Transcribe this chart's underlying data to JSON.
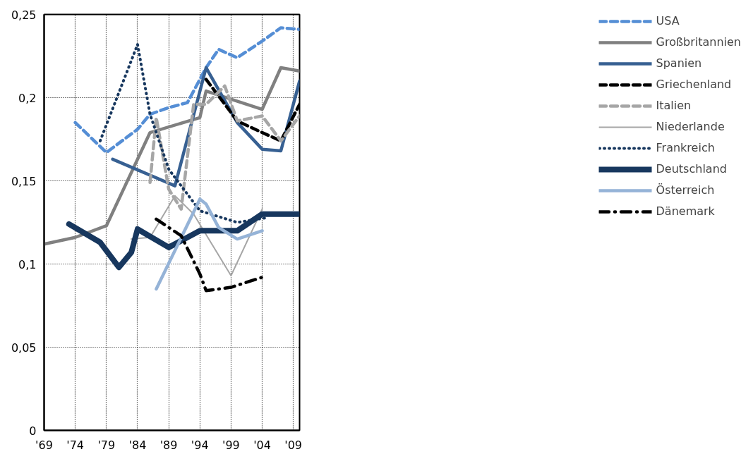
{
  "chart_data": {
    "type": "line",
    "xlim": [
      1969,
      2010
    ],
    "xticks": [
      {
        "value": 1969,
        "label": "'69"
      },
      {
        "value": 1974,
        "label": "'74"
      },
      {
        "value": 1979,
        "label": "'79"
      },
      {
        "value": 1984,
        "label": "'84"
      },
      {
        "value": 1989,
        "label": "'89"
      },
      {
        "value": 1994,
        "label": "'94"
      },
      {
        "value": 1999,
        "label": "'99"
      },
      {
        "value": 2004,
        "label": "'04"
      },
      {
        "value": 2009,
        "label": "'09"
      }
    ],
    "ylim": [
      0,
      0.25
    ],
    "yticks": [
      {
        "value": 0,
        "label": "0"
      },
      {
        "value": 0.05,
        "label": "0,05"
      },
      {
        "value": 0.1,
        "label": "0,1"
      },
      {
        "value": 0.15,
        "label": "0,15"
      },
      {
        "value": 0.2,
        "label": "0,2"
      },
      {
        "value": 0.25,
        "label": "0,25"
      }
    ],
    "grid": true,
    "legend": "right",
    "marker": "none",
    "series": [
      {
        "name": "USA",
        "color": "#558ed5",
        "line_style": "dashed",
        "x": [
          1974,
          1979,
          1984,
          1986,
          1989,
          1992,
          1995,
          1997,
          2000,
          2004,
          2007,
          2010
        ],
        "values": [
          0.185,
          0.167,
          0.181,
          0.19,
          0.194,
          0.197,
          0.218,
          0.229,
          0.224,
          0.234,
          0.242,
          0.241
        ]
      },
      {
        "name": "Großbritannien",
        "color": "#808080",
        "line_style": "solid",
        "x": [
          1969,
          1974,
          1979,
          1986,
          1994,
          1995,
          2004,
          2007,
          2010
        ],
        "values": [
          0.112,
          0.116,
          0.123,
          0.179,
          0.188,
          0.204,
          0.193,
          0.218,
          0.216
        ]
      },
      {
        "name": "Spanien",
        "color": "#376092",
        "line_style": "solid",
        "x": [
          1980,
          1990,
          1995,
          2000,
          2004,
          2007,
          2010
        ],
        "values": [
          0.163,
          0.147,
          0.218,
          0.185,
          0.169,
          0.168,
          0.21
        ]
      },
      {
        "name": "Griechenland",
        "color": "#000000",
        "line_style": "dashed",
        "x": [
          1995,
          2000,
          2004,
          2007,
          2010
        ],
        "values": [
          0.211,
          0.186,
          0.179,
          0.174,
          0.196
        ]
      },
      {
        "name": "Italien",
        "color": "#a6a6a6",
        "line_style": "dashed",
        "x": [
          1986,
          1987,
          1989,
          1991,
          1993,
          1995,
          1998,
          2000,
          2004,
          2007,
          2010
        ],
        "values": [
          0.149,
          0.188,
          0.145,
          0.133,
          0.196,
          0.196,
          0.207,
          0.186,
          0.189,
          0.174,
          0.189
        ]
      },
      {
        "name": "Niederlande",
        "color": "#a6a6a6",
        "line_style": "solid",
        "x": [
          1983,
          1986,
          1990,
          1993,
          1999,
          2004
        ],
        "values": [
          0.115,
          0.116,
          0.141,
          0.13,
          0.093,
          0.133
        ]
      },
      {
        "name": "Frankreich",
        "color": "#17375e",
        "line_style": "dotted",
        "x": [
          1978,
          1984,
          1986,
          1989,
          1994,
          2000,
          2005
        ],
        "values": [
          0.174,
          0.232,
          0.19,
          0.157,
          0.132,
          0.125,
          0.128
        ]
      },
      {
        "name": "Deutschland",
        "color": "#17375e",
        "line_style": "solid",
        "x": [
          1973,
          1978,
          1981,
          1983,
          1984,
          1989,
          1994,
          2000,
          2004,
          2010
        ],
        "values": [
          0.124,
          0.113,
          0.098,
          0.107,
          0.121,
          0.11,
          0.12,
          0.12,
          0.13,
          0.13
        ]
      },
      {
        "name": "Österreich",
        "color": "#95b3d7",
        "line_style": "solid",
        "x": [
          1987,
          1994,
          1995,
          1997,
          2000,
          2004
        ],
        "values": [
          0.085,
          0.139,
          0.136,
          0.122,
          0.115,
          0.12
        ]
      },
      {
        "name": "Dänemark",
        "color": "#000000",
        "line_style": "dashdot",
        "x": [
          1987,
          1991,
          1994,
          1995,
          1999,
          2004
        ],
        "values": [
          0.127,
          0.117,
          0.094,
          0.084,
          0.086,
          0.092
        ]
      }
    ]
  }
}
